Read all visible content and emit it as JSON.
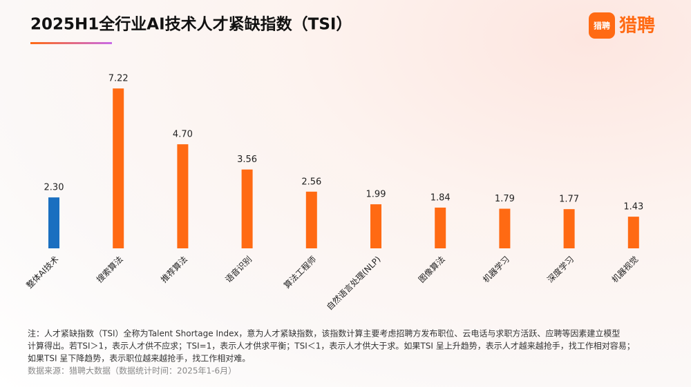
{
  "chart_data": {
    "type": "bar",
    "title": "2025H1全行业AI技术人才紧缺指数（TSI）",
    "categories": [
      "整体AI技术",
      "搜索算法",
      "推荐算法",
      "语音识别",
      "算法工程师",
      "自然语言处理(NLP)",
      "图像算法",
      "机器学习",
      "深度学习",
      "机器视觉"
    ],
    "values": [
      2.3,
      7.22,
      4.7,
      3.56,
      2.56,
      1.99,
      1.84,
      1.79,
      1.77,
      1.43
    ],
    "value_labels": [
      "2.30",
      "7.22",
      "4.70",
      "3.56",
      "2.56",
      "1.99",
      "1.84",
      "1.79",
      "1.77",
      "1.43"
    ],
    "colors": [
      "#1a6fc0",
      "#ff6a13",
      "#ff6a13",
      "#ff6a13",
      "#ff6a13",
      "#ff6a13",
      "#ff6a13",
      "#ff6a13",
      "#ff6a13",
      "#ff6a13"
    ]
  },
  "note": [
    "注：人才紧缺指数（TSI）全称为Talent Shortage Index，意为人才紧缺指数，该指数计算主要考虑招聘方发布职位、云电话与求职方活跃、应聘等因素建立模型",
    "计算得出。若TSI＞1，表示人才供不应求；TSI=1，表示人才供求平衡；TSI＜1，表示人才供大于求。如果TSI 呈上升趋势，表示人才越来越抢手，找工作相对容易；",
    "如果TSI 呈下降趋势，表示职位越来越抢手，找工作相对难。"
  ],
  "source": "数据来源：猎聘大数据（数据统计时间：2025年1-6月）",
  "logo": {
    "icon": "猎聘",
    "text": "猎聘"
  }
}
